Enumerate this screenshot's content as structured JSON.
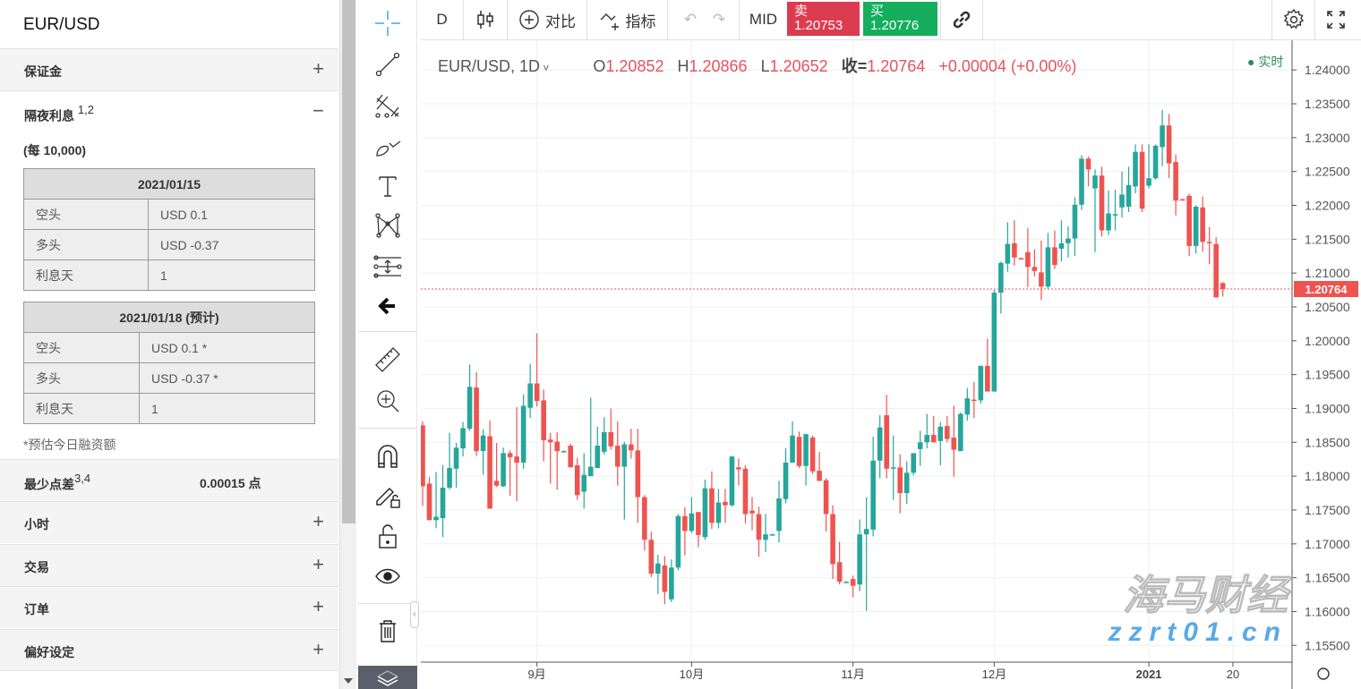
{
  "panel": {
    "title": "EUR/USD",
    "sections": [
      {
        "label": "保证金",
        "sign": "+"
      },
      {
        "label": "隔夜利息",
        "sup": "1,2",
        "sign": "−"
      }
    ],
    "per_unit": "(每 10,000)",
    "tables": [
      {
        "header": "2021/01/15",
        "rows": [
          [
            "空头",
            "USD 0.1"
          ],
          [
            "多头",
            "USD -0.37"
          ],
          [
            "利息天",
            "1"
          ]
        ]
      },
      {
        "header": "2021/01/18 (预计)",
        "rows": [
          [
            "空头",
            "USD 0.1 *"
          ],
          [
            "多头",
            "USD -0.37 *"
          ],
          [
            "利息天",
            "1"
          ]
        ]
      }
    ],
    "footnote": "*预估今日融资额",
    "min_spread": {
      "label": "最少点差",
      "sup": "3,4",
      "value": "0.00015 点"
    },
    "collapsed": [
      {
        "label": "小时",
        "sign": "+"
      },
      {
        "label": "交易",
        "sign": "+"
      },
      {
        "label": "订单",
        "sign": "+"
      },
      {
        "label": "偏好设定",
        "sign": "+"
      }
    ]
  },
  "drawing_tools": [
    "crosshair-icon",
    "trend-line-icon",
    "fib-icon",
    "brush-icon",
    "text-icon",
    "pattern-icon",
    "measure-range-icon",
    "back-arrow-icon",
    "ruler-icon",
    "zoom-in-icon",
    "magnet-icon",
    "lock-drawing-icon",
    "unlock-icon",
    "eye-icon",
    "trash-icon",
    "layers-icon"
  ],
  "toolbar": {
    "interval": "D",
    "compare": "对比",
    "indicators": "指标",
    "price_type": "MID",
    "sell": {
      "label": "卖",
      "price": "1.20753",
      "color": "#dc3b50"
    },
    "buy": {
      "label": "买",
      "price": "1.20776",
      "color": "#14ae5c"
    }
  },
  "legend": {
    "symbol": "EUR/USD, 1D",
    "o_label": "O",
    "o": "1.20852",
    "h_label": "H",
    "h": "1.20866",
    "l_label": "L",
    "l": "1.20652",
    "c_label": "收=",
    "c": "1.20764",
    "change": "+0.00004 (+0.00%)",
    "live": "实时"
  },
  "watermark": {
    "cn": "海马财经",
    "url": "zzrt01.cn"
  },
  "chart_data": {
    "type": "candlestick",
    "symbol": "EUR/USD",
    "interval": "1D",
    "ylim": [
      1.155,
      1.24
    ],
    "y_ticks": [
      "1.24000",
      "1.23500",
      "1.23000",
      "1.22500",
      "1.22000",
      "1.21500",
      "1.21000",
      "1.20500",
      "1.20000",
      "1.19500",
      "1.19000",
      "1.18500",
      "1.18000",
      "1.17500",
      "1.17000",
      "1.16500",
      "1.16000",
      "1.15500"
    ],
    "x_ticks": [
      {
        "label": "9月",
        "bar": 17
      },
      {
        "label": "10月",
        "bar": 40
      },
      {
        "label": "11月",
        "bar": 64
      },
      {
        "label": "12月",
        "bar": 85
      },
      {
        "label": "2021",
        "bar": 108
      },
      {
        "label": "20",
        "bar": 120.5
      }
    ],
    "last_price": "1.20764",
    "colors": {
      "up": "#26a69a",
      "down": "#ef5350"
    },
    "ohlc": [
      [
        1.1875,
        1.1881,
        1.1756,
        1.1785
      ],
      [
        1.1789,
        1.1799,
        1.1735,
        1.1735
      ],
      [
        1.1735,
        1.1806,
        1.1723,
        1.174
      ],
      [
        1.1738,
        1.1816,
        1.171,
        1.1783
      ],
      [
        1.1783,
        1.1864,
        1.178,
        1.1812
      ],
      [
        1.1811,
        1.1849,
        1.1783,
        1.1842
      ],
      [
        1.1841,
        1.188,
        1.1829,
        1.1871
      ],
      [
        1.187,
        1.1965,
        1.1867,
        1.1932
      ],
      [
        1.1931,
        1.1954,
        1.183,
        1.1837
      ],
      [
        1.1837,
        1.1869,
        1.1802,
        1.186
      ],
      [
        1.1859,
        1.1882,
        1.1752,
        1.1752
      ],
      [
        1.1793,
        1.1849,
        1.1784,
        1.1786
      ],
      [
        1.1785,
        1.1842,
        1.1784,
        1.1834
      ],
      [
        1.1834,
        1.1838,
        1.1771,
        1.1828
      ],
      [
        1.1829,
        1.1902,
        1.1763,
        1.182
      ],
      [
        1.182,
        1.1921,
        1.1811,
        1.1904
      ],
      [
        1.1901,
        1.1966,
        1.1886,
        1.1937
      ],
      [
        1.1937,
        1.2011,
        1.1903,
        1.1911
      ],
      [
        1.1912,
        1.1928,
        1.1822,
        1.1853
      ],
      [
        1.1854,
        1.1864,
        1.1789,
        1.185
      ],
      [
        1.1851,
        1.1865,
        1.178,
        1.1837
      ],
      [
        1.1837,
        1.1838,
        1.1836,
        1.1837
      ],
      [
        1.1845,
        1.1848,
        1.1813,
        1.1813
      ],
      [
        1.1816,
        1.1827,
        1.1765,
        1.1772
      ],
      [
        1.1777,
        1.1834,
        1.1752,
        1.1802
      ],
      [
        1.18,
        1.1916,
        1.18,
        1.1814
      ],
      [
        1.1812,
        1.1873,
        1.1812,
        1.1845
      ],
      [
        1.1836,
        1.1887,
        1.1832,
        1.1865
      ],
      [
        1.1865,
        1.19,
        1.1839,
        1.1844
      ],
      [
        1.1845,
        1.1881,
        1.1786,
        1.1814
      ],
      [
        1.1814,
        1.1851,
        1.1736,
        1.1847
      ],
      [
        1.1847,
        1.187,
        1.1826,
        1.1838
      ],
      [
        1.1838,
        1.187,
        1.1731,
        1.1769
      ],
      [
        1.1769,
        1.1772,
        1.169,
        1.1706
      ],
      [
        1.1706,
        1.1718,
        1.1651,
        1.1656
      ],
      [
        1.1656,
        1.1684,
        1.1626,
        1.1671
      ],
      [
        1.1668,
        1.1682,
        1.1611,
        1.1629
      ],
      [
        1.1618,
        1.1677,
        1.1614,
        1.1665
      ],
      [
        1.1665,
        1.1744,
        1.1661,
        1.1741
      ],
      [
        1.1741,
        1.1754,
        1.1683,
        1.1719
      ],
      [
        1.1719,
        1.1769,
        1.1716,
        1.1745
      ],
      [
        1.1747,
        1.1747,
        1.1695,
        1.1713
      ],
      [
        1.171,
        1.1795,
        1.1706,
        1.1782
      ],
      [
        1.1782,
        1.1807,
        1.1722,
        1.1731
      ],
      [
        1.1731,
        1.1781,
        1.1723,
        1.1761
      ],
      [
        1.1762,
        1.1781,
        1.1731,
        1.1757
      ],
      [
        1.1757,
        1.183,
        1.1755,
        1.1829
      ],
      [
        1.1813,
        1.1826,
        1.1786,
        1.181
      ],
      [
        1.1811,
        1.1816,
        1.173,
        1.1744
      ],
      [
        1.1749,
        1.1769,
        1.172,
        1.1745
      ],
      [
        1.1744,
        1.1755,
        1.1681,
        1.1706
      ],
      [
        1.1706,
        1.1744,
        1.1688,
        1.1714
      ],
      [
        1.1714,
        1.1715,
        1.1713,
        1.1714
      ],
      [
        1.1719,
        1.1793,
        1.1702,
        1.1767
      ],
      [
        1.1766,
        1.1841,
        1.176,
        1.182
      ],
      [
        1.182,
        1.1881,
        1.182,
        1.186
      ],
      [
        1.1858,
        1.1866,
        1.1812,
        1.1815
      ],
      [
        1.1815,
        1.1863,
        1.1786,
        1.1862
      ],
      [
        1.1857,
        1.186,
        1.1803,
        1.1807
      ],
      [
        1.1808,
        1.1836,
        1.1793,
        1.1793
      ],
      [
        1.1794,
        1.1797,
        1.1718,
        1.1744
      ],
      [
        1.1744,
        1.1757,
        1.1648,
        1.167
      ],
      [
        1.1673,
        1.1703,
        1.164,
        1.1644
      ],
      [
        1.1644,
        1.1645,
        1.1643,
        1.1644
      ],
      [
        1.1648,
        1.1653,
        1.1621,
        1.1638
      ],
      [
        1.164,
        1.1736,
        1.163,
        1.1714
      ],
      [
        1.1714,
        1.1769,
        1.1601,
        1.1722
      ],
      [
        1.1721,
        1.1858,
        1.1711,
        1.1823
      ],
      [
        1.1823,
        1.189,
        1.1797,
        1.1872
      ],
      [
        1.189,
        1.192,
        1.1797,
        1.1811
      ],
      [
        1.1813,
        1.186,
        1.1765,
        1.1813
      ],
      [
        1.1813,
        1.1832,
        1.1745,
        1.1775
      ],
      [
        1.1775,
        1.1822,
        1.1759,
        1.1805
      ],
      [
        1.1805,
        1.1834,
        1.1801,
        1.1834
      ],
      [
        1.184,
        1.1867,
        1.1815,
        1.185
      ],
      [
        1.185,
        1.1892,
        1.1841,
        1.1861
      ],
      [
        1.1861,
        1.1889,
        1.185,
        1.185
      ],
      [
        1.1852,
        1.188,
        1.1816,
        1.1873
      ],
      [
        1.1874,
        1.1889,
        1.185,
        1.1855
      ],
      [
        1.1857,
        1.1904,
        1.1799,
        1.1839
      ],
      [
        1.1837,
        1.1894,
        1.1837,
        1.1892
      ],
      [
        1.1891,
        1.193,
        1.1882,
        1.1915
      ],
      [
        1.1913,
        1.1939,
        1.1886,
        1.1912
      ],
      [
        1.1912,
        1.1963,
        1.1907,
        1.1963
      ],
      [
        1.1963,
        1.2003,
        1.1925,
        1.1925
      ],
      [
        1.1925,
        1.2075,
        1.1925,
        1.2071
      ],
      [
        1.2071,
        1.2117,
        1.204,
        1.2115
      ],
      [
        1.2114,
        1.2175,
        1.2102,
        1.2143
      ],
      [
        1.2144,
        1.2178,
        1.2111,
        1.2123
      ],
      [
        1.2122,
        1.2123,
        1.212,
        1.2121
      ],
      [
        1.2131,
        1.2166,
        1.2079,
        1.2109
      ],
      [
        1.2109,
        1.2135,
        1.2095,
        1.2103
      ],
      [
        1.2101,
        1.2148,
        1.206,
        1.208
      ],
      [
        1.208,
        1.2159,
        1.2076,
        1.2138
      ],
      [
        1.2138,
        1.2163,
        1.2106,
        1.2112
      ],
      [
        1.2136,
        1.2178,
        1.2117,
        1.2144
      ],
      [
        1.2144,
        1.2169,
        1.2123,
        1.2151
      ],
      [
        1.2151,
        1.2212,
        1.2125,
        1.2201
      ],
      [
        1.2201,
        1.2274,
        1.2193,
        1.2269
      ],
      [
        1.2269,
        1.2272,
        1.2228,
        1.2253
      ],
      [
        1.2225,
        1.2253,
        1.2131,
        1.2244
      ],
      [
        1.2244,
        1.2257,
        1.2154,
        1.2163
      ],
      [
        1.2163,
        1.2222,
        1.2156,
        1.2188
      ],
      [
        1.2187,
        1.2223,
        1.2163,
        1.2187
      ],
      [
        1.2197,
        1.225,
        1.2182,
        1.2216
      ],
      [
        1.2198,
        1.2257,
        1.219,
        1.223
      ],
      [
        1.2228,
        1.229,
        1.2218,
        1.2279
      ],
      [
        1.2279,
        1.229,
        1.219,
        1.2195
      ],
      [
        1.2229,
        1.229,
        1.2225,
        1.224
      ],
      [
        1.224,
        1.229,
        1.2238,
        1.2288
      ],
      [
        1.2286,
        1.2341,
        1.2258,
        1.2318
      ],
      [
        1.2318,
        1.2335,
        1.224,
        1.2262
      ],
      [
        1.2264,
        1.2275,
        1.2185,
        1.2207
      ],
      [
        1.2209,
        1.221,
        1.2207,
        1.2208
      ],
      [
        1.2214,
        1.2217,
        1.2125,
        1.214
      ],
      [
        1.214,
        1.22,
        1.2129,
        1.2198
      ],
      [
        1.2197,
        1.2213,
        1.2131,
        1.2146
      ],
      [
        1.2146,
        1.2168,
        1.2113,
        1.2145
      ],
      [
        1.2143,
        1.2153,
        1.2064,
        1.2064
      ],
      [
        1.20852,
        1.20866,
        1.20652,
        1.20764
      ]
    ]
  }
}
